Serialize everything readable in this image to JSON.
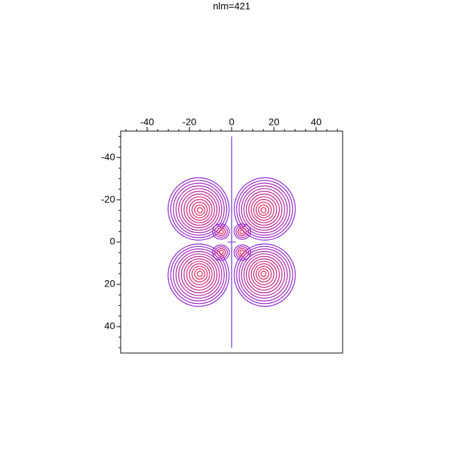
{
  "chart_data": {
    "type": "contour",
    "title": "nlm=421",
    "xlim": [
      -52.5,
      52.5
    ],
    "ylim": [
      -52.5,
      52.5
    ],
    "xticks": [
      -40,
      -20,
      0,
      20,
      40
    ],
    "yticks": [
      -40,
      -20,
      0,
      20,
      40
    ]
  }
}
